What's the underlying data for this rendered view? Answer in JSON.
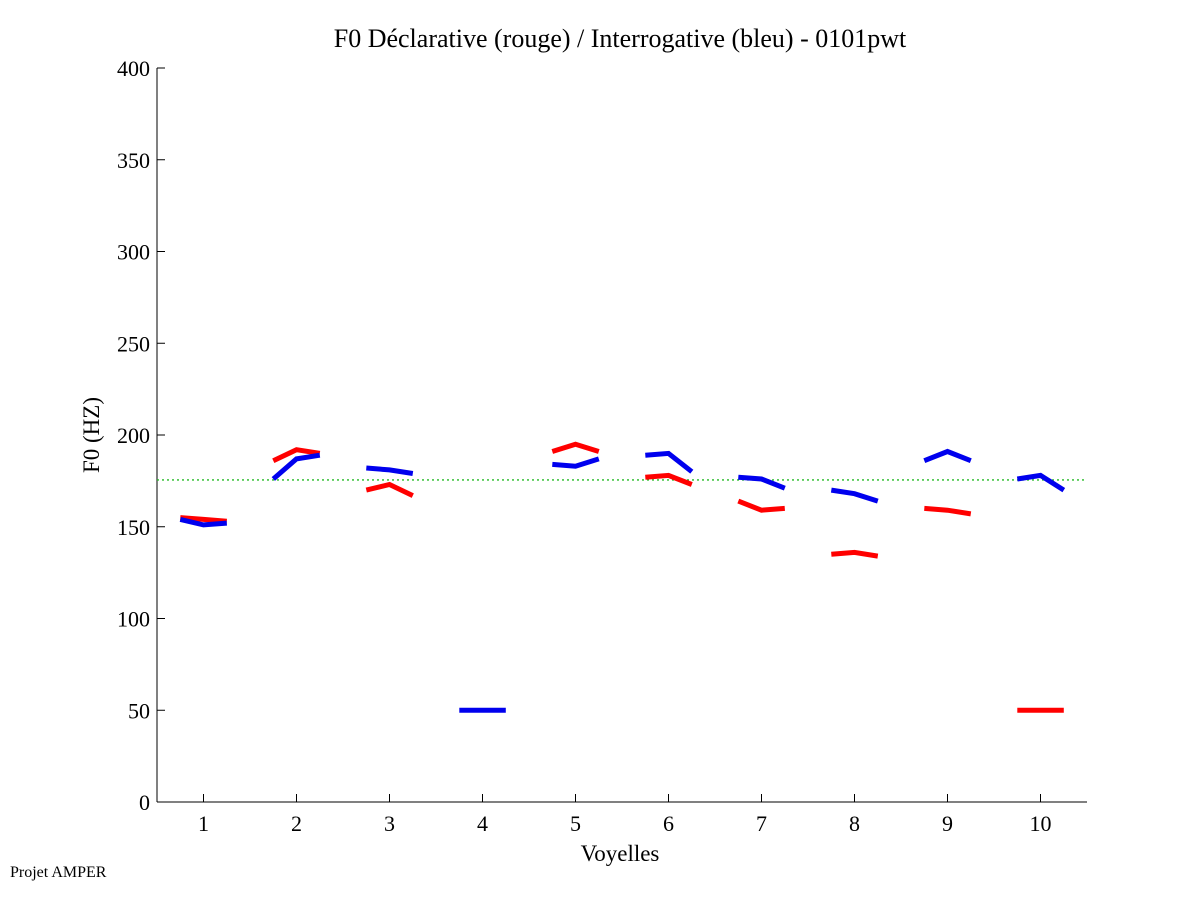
{
  "chart_data": {
    "type": "line",
    "title": "F0 Déclarative (rouge) / Interrogative (bleu) - 0101pwt",
    "xlabel": "Voyelles",
    "ylabel": "F0 (HZ)",
    "xlim": [
      0.5,
      10.5
    ],
    "ylim": [
      0,
      400
    ],
    "xticks": [
      1,
      2,
      3,
      4,
      5,
      6,
      7,
      8,
      9,
      10
    ],
    "yticks": [
      0,
      50,
      100,
      150,
      200,
      250,
      300,
      350,
      400
    ],
    "reference_line": {
      "value": 175.5,
      "color": "#22bb22",
      "style": "dotted"
    },
    "series": [
      {
        "name": "Déclarative (rouge)",
        "color": "#ff0000",
        "segments": [
          {
            "vowel": 1,
            "points": [
              [
                0.75,
                155
              ],
              [
                1.0,
                154
              ],
              [
                1.25,
                153
              ]
            ]
          },
          {
            "vowel": 2,
            "points": [
              [
                1.75,
                186
              ],
              [
                2.0,
                192
              ],
              [
                2.25,
                190
              ]
            ]
          },
          {
            "vowel": 3,
            "points": [
              [
                2.75,
                170
              ],
              [
                3.0,
                173
              ],
              [
                3.25,
                167
              ]
            ]
          },
          {
            "vowel": 5,
            "points": [
              [
                4.75,
                191
              ],
              [
                5.0,
                195
              ],
              [
                5.25,
                191
              ]
            ]
          },
          {
            "vowel": 6,
            "points": [
              [
                5.75,
                177
              ],
              [
                6.0,
                178
              ],
              [
                6.25,
                173
              ]
            ]
          },
          {
            "vowel": 7,
            "points": [
              [
                6.75,
                164
              ],
              [
                7.0,
                159
              ],
              [
                7.25,
                160
              ]
            ]
          },
          {
            "vowel": 8,
            "points": [
              [
                7.75,
                135
              ],
              [
                8.0,
                136
              ],
              [
                8.25,
                134
              ]
            ]
          },
          {
            "vowel": 9,
            "points": [
              [
                8.75,
                160
              ],
              [
                9.0,
                159
              ],
              [
                9.25,
                157
              ]
            ]
          },
          {
            "vowel": 10,
            "points": [
              [
                9.75,
                50
              ],
              [
                10.0,
                50
              ],
              [
                10.25,
                50
              ]
            ]
          }
        ]
      },
      {
        "name": "Interrogative (bleu)",
        "color": "#0000ee",
        "segments": [
          {
            "vowel": 1,
            "points": [
              [
                0.75,
                154
              ],
              [
                1.0,
                151
              ],
              [
                1.25,
                152
              ]
            ]
          },
          {
            "vowel": 2,
            "points": [
              [
                1.75,
                176
              ],
              [
                2.0,
                187
              ],
              [
                2.25,
                189
              ]
            ]
          },
          {
            "vowel": 3,
            "points": [
              [
                2.75,
                182
              ],
              [
                3.0,
                181
              ],
              [
                3.25,
                179
              ]
            ]
          },
          {
            "vowel": 4,
            "points": [
              [
                3.75,
                50
              ],
              [
                4.0,
                50
              ],
              [
                4.25,
                50
              ]
            ]
          },
          {
            "vowel": 5,
            "points": [
              [
                4.75,
                184
              ],
              [
                5.0,
                183
              ],
              [
                5.25,
                187
              ]
            ]
          },
          {
            "vowel": 6,
            "points": [
              [
                5.75,
                189
              ],
              [
                6.0,
                190
              ],
              [
                6.25,
                180
              ]
            ]
          },
          {
            "vowel": 7,
            "points": [
              [
                6.75,
                177
              ],
              [
                7.0,
                176
              ],
              [
                7.25,
                171
              ]
            ]
          },
          {
            "vowel": 8,
            "points": [
              [
                7.75,
                170
              ],
              [
                8.0,
                168
              ],
              [
                8.25,
                164
              ]
            ]
          },
          {
            "vowel": 9,
            "points": [
              [
                8.75,
                186
              ],
              [
                9.0,
                191
              ],
              [
                9.25,
                186
              ]
            ]
          },
          {
            "vowel": 10,
            "points": [
              [
                9.75,
                176
              ],
              [
                10.0,
                178
              ],
              [
                10.25,
                170
              ]
            ]
          }
        ]
      }
    ]
  },
  "footer": {
    "text": "Projet AMPER"
  }
}
